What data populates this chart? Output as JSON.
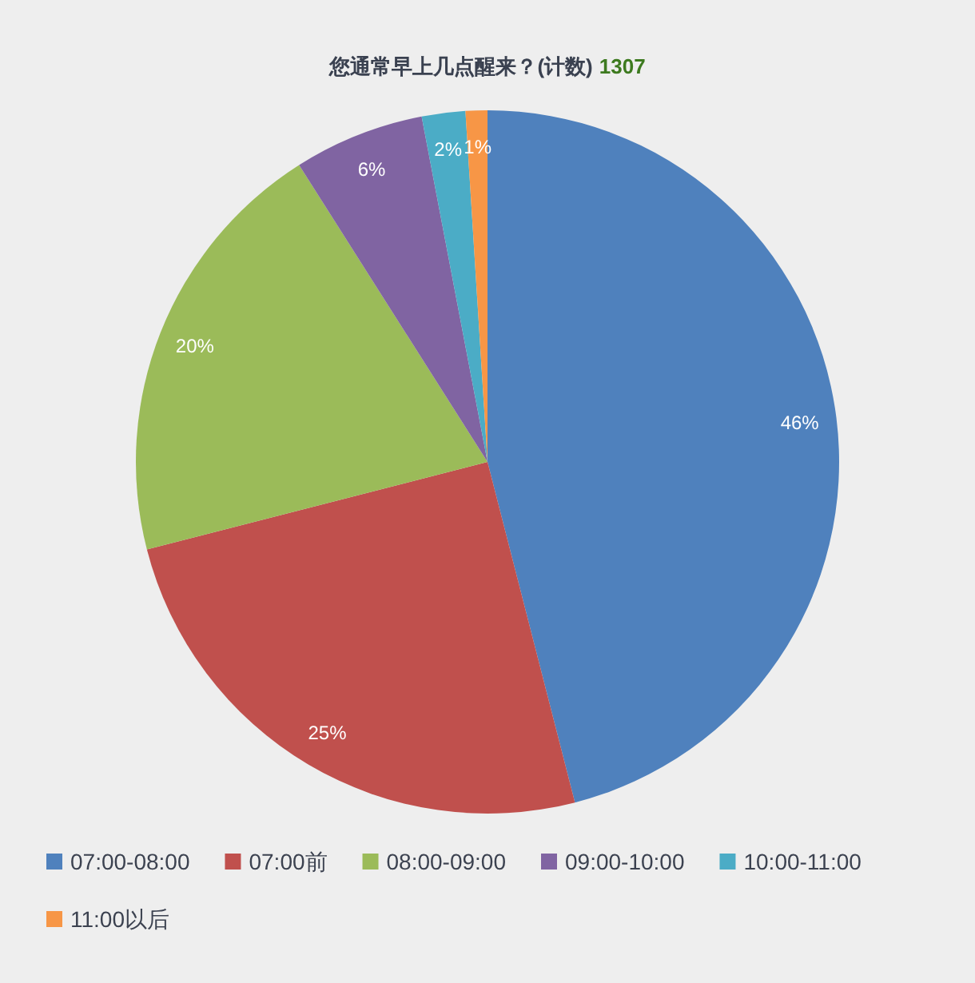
{
  "chart_data": {
    "type": "pie",
    "title": "您通常早上几点醒来？(计数)",
    "annotations": [
      "1307"
    ],
    "categories": [
      "07:00-08:00",
      "07:00前",
      "08:00-09:00",
      "09:00-10:00",
      "10:00-11:00",
      "11:00以后"
    ],
    "values": [
      46,
      25,
      20,
      6,
      2,
      1
    ],
    "colors": [
      "#4f81bd",
      "#c0504d",
      "#9bbb59",
      "#8064a2",
      "#4bacc6",
      "#f79646"
    ],
    "value_labels": [
      "46%",
      "25%",
      "20%",
      "6%",
      "2%",
      "1%"
    ],
    "legend": "bottom"
  }
}
